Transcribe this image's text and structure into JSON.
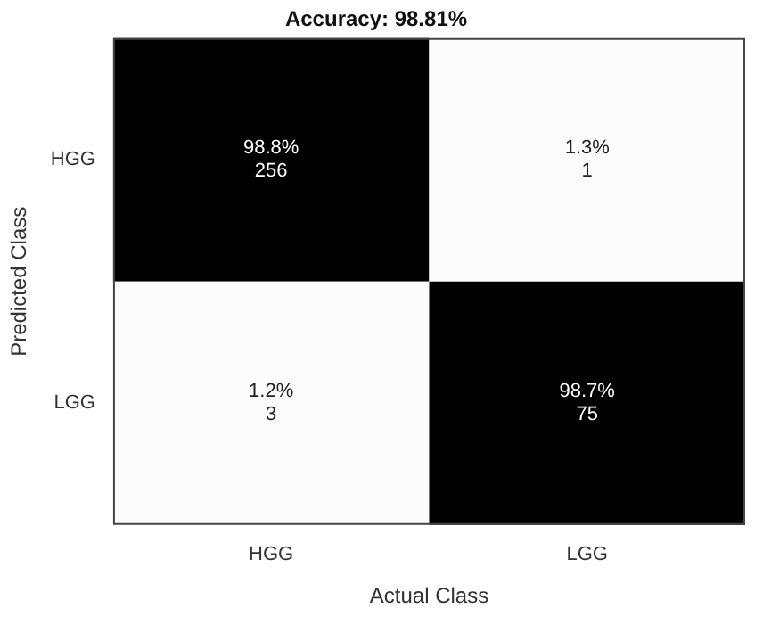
{
  "chart_data": {
    "type": "heatmap",
    "title": "Accuracy: 98.81%",
    "xlabel": "Actual Class",
    "ylabel": "Predicted Class",
    "categories": [
      "HGG",
      "LGG"
    ],
    "y_categories": [
      "HGG",
      "LGG"
    ],
    "cells": [
      [
        98.8,
        1.3
      ],
      [
        1.2,
        98.7
      ]
    ],
    "cell_labels": [
      [
        "98.8%",
        "1.3%"
      ],
      [
        "1.2%",
        "98.7%"
      ]
    ],
    "annotations": [
      "256",
      "1",
      "3",
      "75"
    ]
  }
}
